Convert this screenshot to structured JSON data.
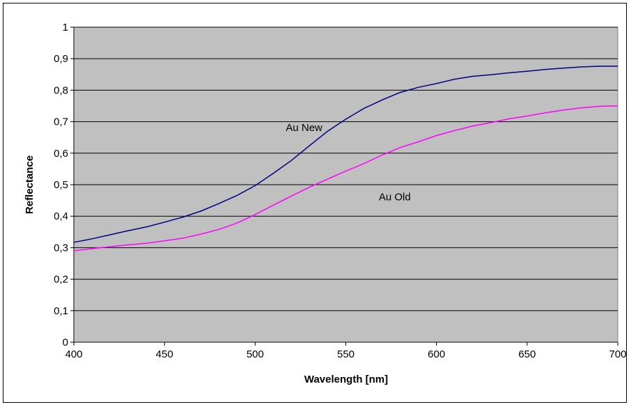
{
  "chart_data": {
    "type": "line",
    "title": "",
    "xlabel": "Wavelength [nm]",
    "ylabel": "Reflectance",
    "xlim": [
      400,
      700
    ],
    "ylim": [
      0,
      1
    ],
    "x_ticks": [
      400,
      450,
      500,
      550,
      600,
      650,
      700
    ],
    "x_tick_labels": [
      "400",
      "450",
      "500",
      "550",
      "600",
      "650",
      "700"
    ],
    "y_ticks": [
      0,
      0.1,
      0.2,
      0.3,
      0.4,
      0.5,
      0.6,
      0.7,
      0.8,
      0.9,
      1
    ],
    "y_tick_labels": [
      "0",
      "0,1",
      "0,2",
      "0,3",
      "0,4",
      "0,5",
      "0,6",
      "0,7",
      "0,8",
      "0,9",
      "1"
    ],
    "grid": "horizontal",
    "legend": "none",
    "plot_background": "#c0c0c0",
    "series": [
      {
        "annotation": "Au New",
        "color": "#000080",
        "x": [
          400,
          410,
          420,
          430,
          440,
          450,
          460,
          470,
          480,
          490,
          500,
          510,
          520,
          530,
          540,
          550,
          560,
          570,
          580,
          590,
          600,
          610,
          620,
          630,
          640,
          650,
          660,
          670,
          680,
          690,
          700
        ],
        "y": [
          0.317,
          0.328,
          0.341,
          0.354,
          0.366,
          0.381,
          0.397,
          0.416,
          0.44,
          0.466,
          0.497,
          0.536,
          0.577,
          0.624,
          0.67,
          0.708,
          0.742,
          0.769,
          0.793,
          0.809,
          0.821,
          0.835,
          0.844,
          0.849,
          0.855,
          0.86,
          0.866,
          0.87,
          0.874,
          0.876,
          0.876
        ]
      },
      {
        "annotation": "Au Old",
        "color": "#ff00ff",
        "x": [
          400,
          410,
          420,
          430,
          440,
          450,
          460,
          470,
          480,
          490,
          500,
          510,
          520,
          530,
          540,
          550,
          560,
          570,
          580,
          590,
          600,
          610,
          620,
          630,
          640,
          650,
          660,
          670,
          680,
          690,
          700
        ],
        "y": [
          0.29,
          0.297,
          0.303,
          0.309,
          0.314,
          0.322,
          0.33,
          0.343,
          0.358,
          0.378,
          0.405,
          0.435,
          0.464,
          0.492,
          0.518,
          0.543,
          0.567,
          0.594,
          0.618,
          0.636,
          0.656,
          0.672,
          0.686,
          0.697,
          0.709,
          0.718,
          0.728,
          0.737,
          0.744,
          0.749,
          0.75
        ]
      }
    ],
    "annotations": [
      {
        "text": "Au New",
        "x": 527,
        "y": 0.67
      },
      {
        "text": "Au Old",
        "x": 577,
        "y": 0.45
      }
    ]
  }
}
